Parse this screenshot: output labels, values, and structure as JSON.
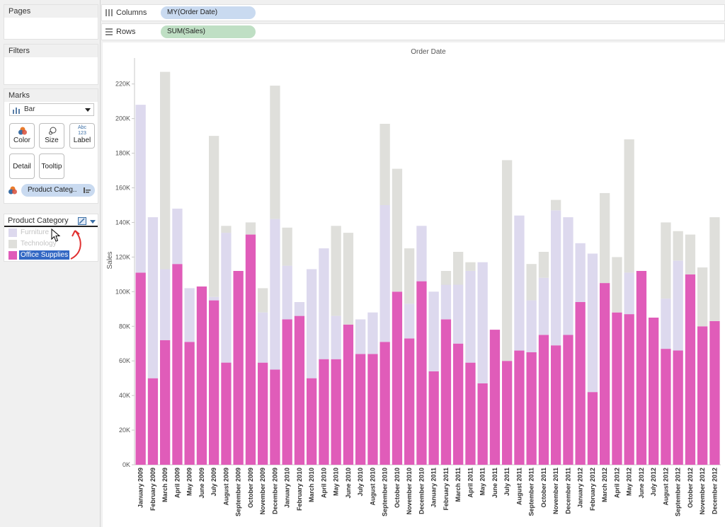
{
  "pages_card": {
    "title": "Pages"
  },
  "filters_card": {
    "title": "Filters"
  },
  "marks_card": {
    "title": "Marks",
    "mark_type": "Bar",
    "buttons": {
      "color": "Color",
      "size": "Size",
      "label": "Label",
      "label_icon_text": "Abc\n123",
      "detail": "Detail",
      "tooltip": "Tooltip"
    },
    "color_pill": "Product Categ.."
  },
  "legend": {
    "title": "Product Category",
    "items": [
      {
        "label": "Furniture",
        "color": "#ddd9ee",
        "state": "dimmed"
      },
      {
        "label": "Technology",
        "color": "#dfdfdb",
        "state": "dimmed"
      },
      {
        "label": "Office Supplies",
        "color": "#e05cb9",
        "state": "selected"
      }
    ]
  },
  "shelves": {
    "columns": {
      "label": "Columns",
      "pill": "MY(Order Date)",
      "pill_color": "#c9daf0"
    },
    "rows": {
      "label": "Rows",
      "pill": "SUM(Sales)",
      "pill_color": "#bfdfc4"
    }
  },
  "chart_data": {
    "type": "bar",
    "stacked": true,
    "title": "Order Date",
    "xlabel": "",
    "ylabel": "Sales",
    "ylim": [
      0,
      235000
    ],
    "yticks": [
      "0K",
      "20K",
      "40K",
      "60K",
      "80K",
      "100K",
      "120K",
      "140K",
      "160K",
      "180K",
      "200K",
      "220K"
    ],
    "grid": false,
    "categories": [
      "January 2009",
      "February 2009",
      "March 2009",
      "April 2009",
      "May 2009",
      "June 2009",
      "July 2009",
      "August 2009",
      "September 2009",
      "October 2009",
      "November 2009",
      "December 2009",
      "January 2010",
      "February 2010",
      "March 2010",
      "April 2010",
      "May 2010",
      "June 2010",
      "July 2010",
      "August 2010",
      "September 2010",
      "October 2010",
      "November 2010",
      "December 2010",
      "January 2011",
      "February 2011",
      "March 2011",
      "April 2011",
      "May 2011",
      "June 2011",
      "July 2011",
      "August 2011",
      "September 2011",
      "October 2011",
      "November 2011",
      "December 2011",
      "January 2012",
      "February 2012",
      "March 2012",
      "April 2012",
      "May 2012",
      "June 2012",
      "July 2012",
      "August 2012",
      "September 2012",
      "October 2012",
      "November 2012",
      "December 2012"
    ],
    "series": [
      {
        "name": "Office Supplies",
        "color": "#e05cb9",
        "values": [
          111000,
          50000,
          72000,
          116000,
          71000,
          103000,
          95000,
          59000,
          112000,
          133000,
          59000,
          55000,
          84000,
          86000,
          50000,
          61000,
          61000,
          81000,
          64000,
          64000,
          71000,
          100000,
          73000,
          106000,
          54000,
          84000,
          70000,
          59000,
          47000,
          78000,
          60000,
          66000,
          65000,
          75000,
          69000,
          75000,
          94000,
          42000,
          105000,
          88000,
          87000,
          112000,
          85000,
          67000,
          66000,
          110000,
          80000,
          83000
        ]
      },
      {
        "name": "Furniture",
        "color": "#ddd9ee",
        "values": [
          97000,
          93000,
          41000,
          32000,
          31000,
          0,
          2000,
          75000,
          0,
          0,
          29000,
          87000,
          31000,
          8000,
          63000,
          64000,
          25000,
          0,
          20000,
          24000,
          79000,
          0,
          20000,
          32000,
          46000,
          20000,
          34000,
          53000,
          70000,
          0,
          0,
          78000,
          30000,
          33000,
          78000,
          68000,
          34000,
          80000,
          0,
          0,
          24000,
          0,
          0,
          29000,
          52000,
          0,
          0,
          0
        ]
      },
      {
        "name": "Technology",
        "color": "#dfdfdb",
        "values": [
          0,
          0,
          114000,
          0,
          0,
          0,
          93000,
          4000,
          0,
          7000,
          14000,
          77000,
          22000,
          0,
          0,
          0,
          52000,
          53000,
          0,
          0,
          47000,
          71000,
          32000,
          0,
          0,
          8000,
          19000,
          5000,
          0,
          0,
          116000,
          0,
          21000,
          15000,
          6000,
          0,
          0,
          0,
          52000,
          32000,
          77000,
          0,
          0,
          44000,
          17000,
          23000,
          34000,
          60000
        ]
      }
    ]
  }
}
